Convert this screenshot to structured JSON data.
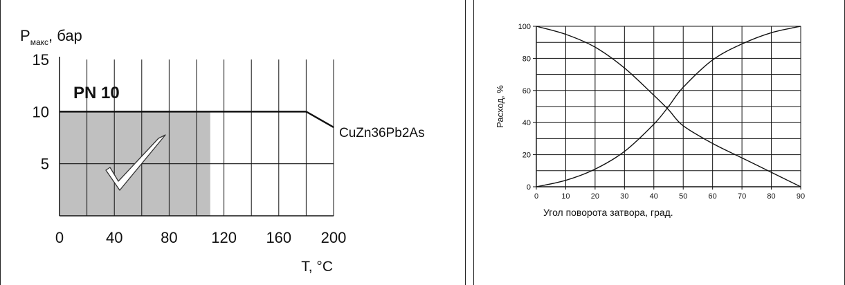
{
  "chart_data": [
    {
      "type": "area",
      "ylabel_main": "P",
      "ylabel_sub": "макс",
      "ylabel_unit": ", бар",
      "xlabel": "T, °C",
      "badge": "PN 10",
      "material_label": "CuZn36Pb2As",
      "x_ticks": [
        "0",
        "40",
        "80",
        "120",
        "160",
        "200"
      ],
      "y_ticks": [
        "15",
        "10",
        "5"
      ],
      "xlim": [
        0,
        200
      ],
      "ylim": [
        0,
        15
      ],
      "permitted_area": {
        "x": [
          0,
          110
        ],
        "y": [
          0,
          10
        ]
      },
      "limit_line": {
        "x": [
          0,
          180,
          200
        ],
        "y": [
          10,
          10,
          8.5
        ]
      },
      "fill_color": "#c0c0c0",
      "grid": true
    },
    {
      "type": "line",
      "ylabel": "Расход, %",
      "xlabel": "Угол поворота затвора, град.",
      "x_ticks": [
        "0",
        "10",
        "20",
        "30",
        "40",
        "50",
        "60",
        "70",
        "80",
        "90"
      ],
      "y_ticks": [
        "0",
        "20",
        "40",
        "60",
        "80",
        "100"
      ],
      "xlim": [
        0,
        90
      ],
      "ylim": [
        0,
        100
      ],
      "grid": true,
      "series": [
        {
          "x": [
            0,
            10,
            20,
            30,
            40,
            45,
            50,
            60,
            70,
            80,
            90
          ],
          "y": [
            0,
            4,
            11,
            22,
            39,
            50,
            62,
            79,
            89,
            96,
            100
          ]
        },
        {
          "x": [
            0,
            10,
            20,
            30,
            40,
            45,
            50,
            60,
            70,
            80,
            90
          ],
          "y": [
            100,
            95,
            87,
            74,
            57,
            48,
            38,
            27,
            18,
            9,
            0
          ]
        }
      ]
    }
  ]
}
